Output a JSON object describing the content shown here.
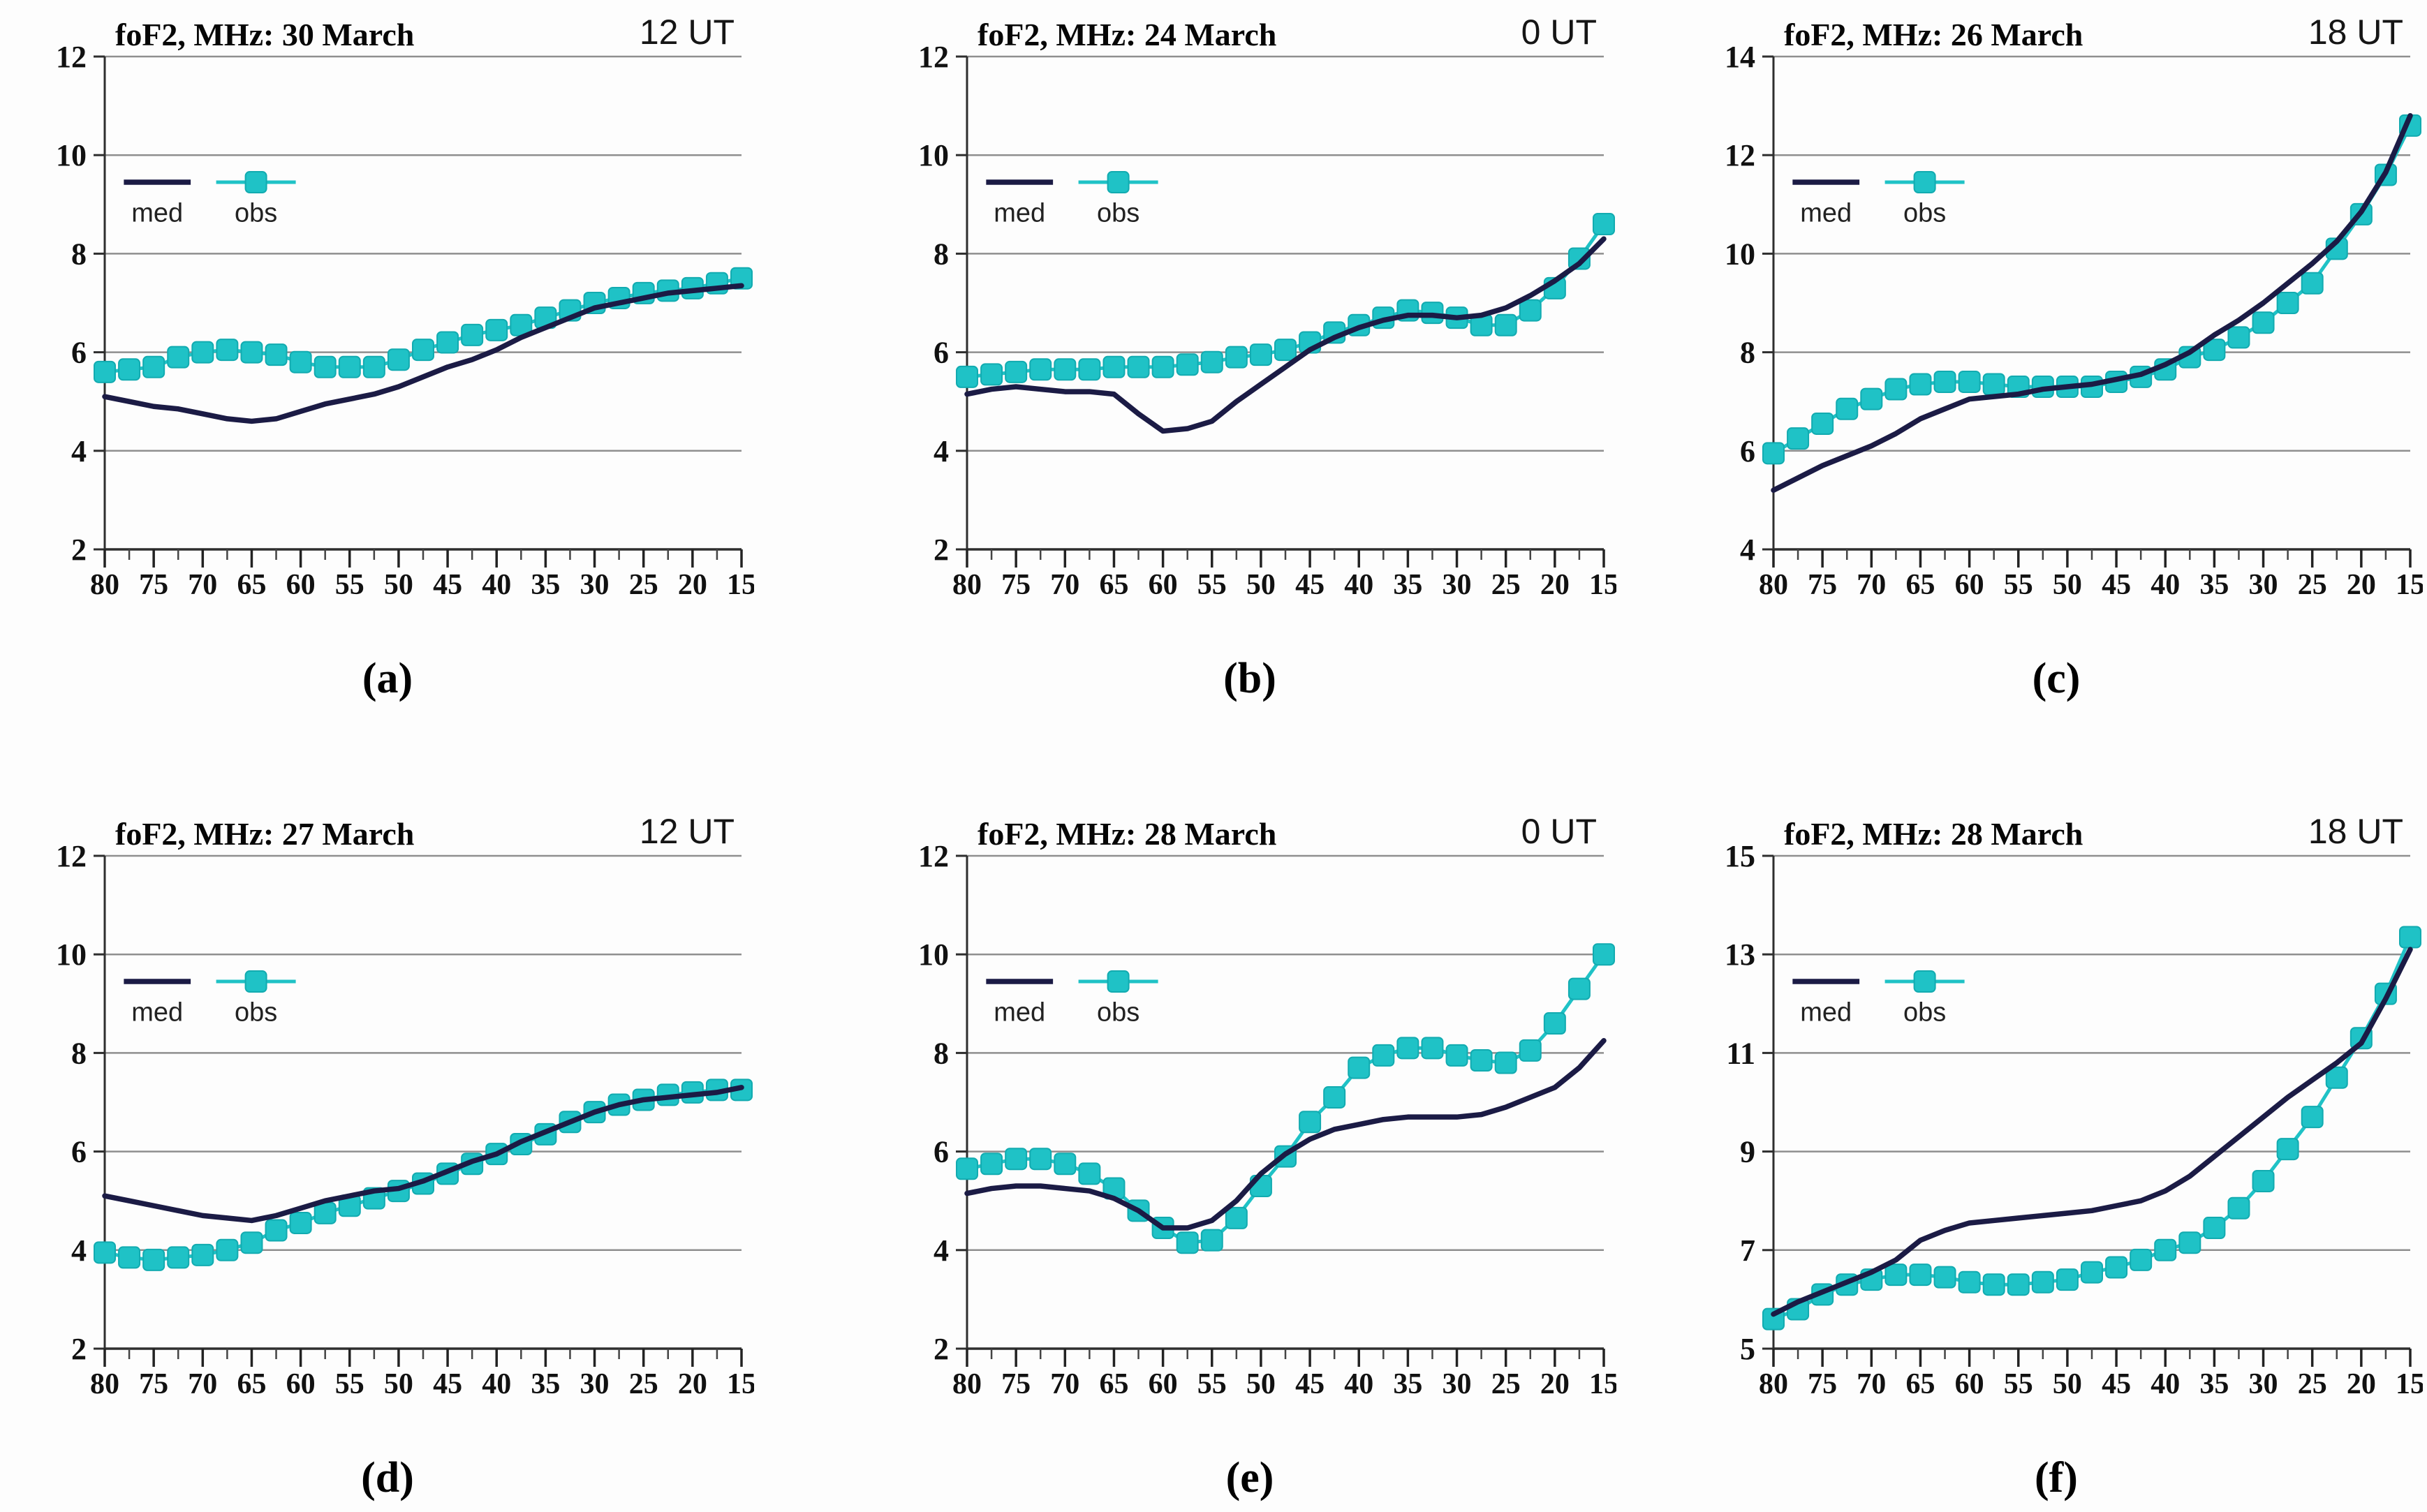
{
  "chart_data": [
    {
      "id": "a",
      "type": "line",
      "title": "foF2, MHz: 30 March",
      "ut_label": "12 UT",
      "panel_label": "(a)",
      "ylim": [
        2,
        12
      ],
      "yticks": [
        2,
        4,
        6,
        8,
        10,
        12
      ],
      "x_values": [
        80,
        77.5,
        75,
        72.5,
        70,
        67.5,
        65,
        62.5,
        60,
        57.5,
        55,
        52.5,
        50,
        47.5,
        45,
        42.5,
        40,
        37.5,
        35,
        32.5,
        30,
        27.5,
        25,
        22.5,
        20,
        17.5,
        15
      ],
      "x_tick_labels": [
        80,
        75,
        70,
        65,
        60,
        55,
        50,
        45,
        40,
        35,
        30,
        25,
        20,
        15
      ],
      "legend": {
        "med": "med",
        "obs": "obs"
      },
      "colors": {
        "med": "#1b1b45",
        "obs": "#1fc2c6"
      },
      "series": [
        {
          "name": "med",
          "values": [
            5.1,
            5.0,
            4.9,
            4.85,
            4.75,
            4.65,
            4.6,
            4.65,
            4.8,
            4.95,
            5.05,
            5.15,
            5.3,
            5.5,
            5.7,
            5.85,
            6.05,
            6.3,
            6.5,
            6.7,
            6.9,
            7.0,
            7.1,
            7.2,
            7.25,
            7.3,
            7.35
          ]
        },
        {
          "name": "obs",
          "values": [
            5.6,
            5.65,
            5.7,
            5.9,
            6.0,
            6.05,
            6.0,
            5.95,
            5.8,
            5.7,
            5.7,
            5.7,
            5.85,
            6.05,
            6.2,
            6.35,
            6.45,
            6.55,
            6.7,
            6.85,
            7.0,
            7.1,
            7.2,
            7.25,
            7.3,
            7.4,
            7.5
          ]
        }
      ]
    },
    {
      "id": "b",
      "type": "line",
      "title": "foF2, MHz: 24 March",
      "ut_label": "0 UT",
      "panel_label": "(b)",
      "ylim": [
        2,
        12
      ],
      "yticks": [
        2,
        4,
        6,
        8,
        10,
        12
      ],
      "x_values": [
        80,
        77.5,
        75,
        72.5,
        70,
        67.5,
        65,
        62.5,
        60,
        57.5,
        55,
        52.5,
        50,
        47.5,
        45,
        42.5,
        40,
        37.5,
        35,
        32.5,
        30,
        27.5,
        25,
        22.5,
        20,
        17.5,
        15
      ],
      "x_tick_labels": [
        80,
        75,
        70,
        65,
        60,
        55,
        50,
        45,
        40,
        35,
        30,
        25,
        20,
        15
      ],
      "legend": {
        "med": "med",
        "obs": "obs"
      },
      "colors": {
        "med": "#1b1b45",
        "obs": "#1fc2c6"
      },
      "series": [
        {
          "name": "med",
          "values": [
            5.15,
            5.25,
            5.3,
            5.25,
            5.2,
            5.2,
            5.15,
            4.75,
            4.4,
            4.45,
            4.6,
            5.0,
            5.35,
            5.7,
            6.05,
            6.3,
            6.5,
            6.65,
            6.75,
            6.75,
            6.7,
            6.75,
            6.9,
            7.15,
            7.45,
            7.8,
            8.3
          ]
        },
        {
          "name": "obs",
          "values": [
            5.5,
            5.55,
            5.6,
            5.65,
            5.65,
            5.65,
            5.7,
            5.7,
            5.7,
            5.75,
            5.8,
            5.9,
            5.95,
            6.05,
            6.2,
            6.4,
            6.55,
            6.7,
            6.85,
            6.8,
            6.7,
            6.55,
            6.55,
            6.85,
            7.3,
            7.9,
            8.6
          ]
        }
      ]
    },
    {
      "id": "c",
      "type": "line",
      "title": "foF2, MHz: 26 March",
      "ut_label": "18 UT",
      "panel_label": "(c)",
      "ylim": [
        4,
        14
      ],
      "yticks": [
        4,
        6,
        8,
        10,
        12,
        14
      ],
      "x_values": [
        80,
        77.5,
        75,
        72.5,
        70,
        67.5,
        65,
        62.5,
        60,
        57.5,
        55,
        52.5,
        50,
        47.5,
        45,
        42.5,
        40,
        37.5,
        35,
        32.5,
        30,
        27.5,
        25,
        22.5,
        20,
        17.5,
        15
      ],
      "x_tick_labels": [
        80,
        75,
        70,
        65,
        60,
        55,
        50,
        45,
        40,
        35,
        30,
        25,
        20,
        15
      ],
      "legend": {
        "med": "med",
        "obs": "obs"
      },
      "colors": {
        "med": "#1b1b45",
        "obs": "#1fc2c6"
      },
      "series": [
        {
          "name": "med",
          "values": [
            5.2,
            5.45,
            5.7,
            5.9,
            6.1,
            6.35,
            6.65,
            6.85,
            7.05,
            7.1,
            7.15,
            7.25,
            7.3,
            7.35,
            7.45,
            7.55,
            7.75,
            8.0,
            8.35,
            8.65,
            9.0,
            9.4,
            9.8,
            10.25,
            10.85,
            11.65,
            12.8
          ]
        },
        {
          "name": "obs",
          "values": [
            5.95,
            6.25,
            6.55,
            6.85,
            7.05,
            7.25,
            7.35,
            7.4,
            7.4,
            7.35,
            7.3,
            7.3,
            7.3,
            7.3,
            7.4,
            7.5,
            7.65,
            7.9,
            8.05,
            8.3,
            8.6,
            9.0,
            9.4,
            10.1,
            10.8,
            11.6,
            12.6
          ]
        }
      ]
    },
    {
      "id": "d",
      "type": "line",
      "title": "foF2, MHz: 27 March",
      "ut_label": "12 UT",
      "panel_label": "(d)",
      "ylim": [
        2,
        12
      ],
      "yticks": [
        2,
        4,
        6,
        8,
        10,
        12
      ],
      "x_values": [
        80,
        77.5,
        75,
        72.5,
        70,
        67.5,
        65,
        62.5,
        60,
        57.5,
        55,
        52.5,
        50,
        47.5,
        45,
        42.5,
        40,
        37.5,
        35,
        32.5,
        30,
        27.5,
        25,
        22.5,
        20,
        17.5,
        15
      ],
      "x_tick_labels": [
        80,
        75,
        70,
        65,
        60,
        55,
        50,
        45,
        40,
        35,
        30,
        25,
        20,
        15
      ],
      "legend": {
        "med": "med",
        "obs": "obs"
      },
      "colors": {
        "med": "#1b1b45",
        "obs": "#1fc2c6"
      },
      "series": [
        {
          "name": "med",
          "values": [
            5.1,
            5.0,
            4.9,
            4.8,
            4.7,
            4.65,
            4.6,
            4.7,
            4.85,
            5.0,
            5.1,
            5.2,
            5.25,
            5.4,
            5.6,
            5.8,
            5.95,
            6.2,
            6.4,
            6.6,
            6.8,
            6.95,
            7.05,
            7.1,
            7.15,
            7.2,
            7.3
          ]
        },
        {
          "name": "obs",
          "values": [
            3.95,
            3.85,
            3.8,
            3.85,
            3.9,
            4.0,
            4.15,
            4.4,
            4.55,
            4.75,
            4.9,
            5.05,
            5.2,
            5.35,
            5.55,
            5.75,
            5.95,
            6.15,
            6.35,
            6.6,
            6.8,
            6.95,
            7.05,
            7.15,
            7.2,
            7.25,
            7.25
          ]
        }
      ]
    },
    {
      "id": "e",
      "type": "line",
      "title": "foF2, MHz: 28 March",
      "ut_label": "0 UT",
      "panel_label": "(e)",
      "ylim": [
        2,
        12
      ],
      "yticks": [
        2,
        4,
        6,
        8,
        10,
        12
      ],
      "x_values": [
        80,
        77.5,
        75,
        72.5,
        70,
        67.5,
        65,
        62.5,
        60,
        57.5,
        55,
        52.5,
        50,
        47.5,
        45,
        42.5,
        40,
        37.5,
        35,
        32.5,
        30,
        27.5,
        25,
        22.5,
        20,
        17.5,
        15
      ],
      "x_tick_labels": [
        80,
        75,
        70,
        65,
        60,
        55,
        50,
        45,
        40,
        35,
        30,
        25,
        20,
        15
      ],
      "legend": {
        "med": "med",
        "obs": "obs"
      },
      "colors": {
        "med": "#1b1b45",
        "obs": "#1fc2c6"
      },
      "series": [
        {
          "name": "med",
          "values": [
            5.15,
            5.25,
            5.3,
            5.3,
            5.25,
            5.2,
            5.05,
            4.8,
            4.45,
            4.45,
            4.6,
            5.0,
            5.55,
            5.95,
            6.25,
            6.45,
            6.55,
            6.65,
            6.7,
            6.7,
            6.7,
            6.75,
            6.9,
            7.1,
            7.3,
            7.7,
            8.25
          ]
        },
        {
          "name": "obs",
          "values": [
            5.65,
            5.75,
            5.85,
            5.85,
            5.75,
            5.55,
            5.25,
            4.8,
            4.45,
            4.15,
            4.2,
            4.65,
            5.3,
            5.9,
            6.6,
            7.1,
            7.7,
            7.95,
            8.1,
            8.1,
            7.95,
            7.85,
            7.8,
            8.05,
            8.6,
            9.3,
            10.0
          ]
        }
      ]
    },
    {
      "id": "f",
      "type": "line",
      "title": "foF2, MHz: 28 March",
      "ut_label": "18 UT",
      "panel_label": "(f)",
      "ylim": [
        5,
        15
      ],
      "yticks": [
        5,
        7,
        9,
        11,
        13,
        15
      ],
      "x_values": [
        80,
        77.5,
        75,
        72.5,
        70,
        67.5,
        65,
        62.5,
        60,
        57.5,
        55,
        52.5,
        50,
        47.5,
        45,
        42.5,
        40,
        37.5,
        35,
        32.5,
        30,
        27.5,
        25,
        22.5,
        20,
        17.5,
        15
      ],
      "x_tick_labels": [
        80,
        75,
        70,
        65,
        60,
        55,
        50,
        45,
        40,
        35,
        30,
        25,
        20,
        15
      ],
      "legend": {
        "med": "med",
        "obs": "obs"
      },
      "colors": {
        "med": "#1b1b45",
        "obs": "#1fc2c6"
      },
      "series": [
        {
          "name": "med",
          "values": [
            5.7,
            5.95,
            6.15,
            6.35,
            6.55,
            6.8,
            7.2,
            7.4,
            7.55,
            7.6,
            7.65,
            7.7,
            7.75,
            7.8,
            7.9,
            8.0,
            8.2,
            8.5,
            8.9,
            9.3,
            9.7,
            10.1,
            10.45,
            10.8,
            11.2,
            12.1,
            13.1
          ]
        },
        {
          "name": "obs",
          "values": [
            5.6,
            5.8,
            6.1,
            6.3,
            6.4,
            6.5,
            6.5,
            6.45,
            6.35,
            6.3,
            6.3,
            6.35,
            6.4,
            6.55,
            6.65,
            6.8,
            7.0,
            7.15,
            7.45,
            7.85,
            8.4,
            9.05,
            9.7,
            10.5,
            11.3,
            12.2,
            13.35
          ]
        }
      ]
    }
  ]
}
